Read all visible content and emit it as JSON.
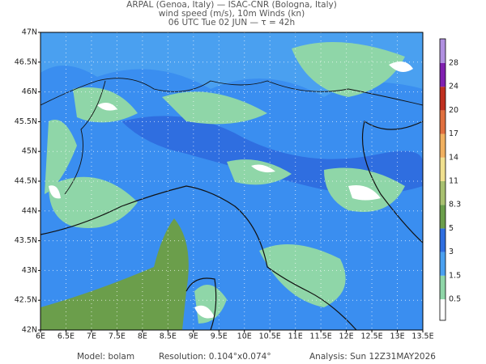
{
  "header": {
    "line1": "ARPAL (Genoa, Italy)  —  ISAC-CNR (Bologna, Italy)",
    "line2": "wind speed (m/s), 10m Winds (kn)",
    "line3": "06 UTC Tue 02 JUN  —  τ = 42h"
  },
  "map": {
    "lat_labels": [
      "42N",
      "42.5N",
      "43N",
      "43.5N",
      "44N",
      "44.5N",
      "45N",
      "45.5N",
      "46N",
      "46.5N",
      "47N"
    ],
    "lon_labels": [
      "6E",
      "6.5E",
      "7E",
      "7.5E",
      "8E",
      "8.5E",
      "9E",
      "9.5E",
      "10E",
      "10.5E",
      "11E",
      "11.5E",
      "12E",
      "12.5E",
      "13E",
      "13.5E"
    ]
  },
  "colorbar": {
    "levels": [
      0.5,
      1.5,
      3,
      5,
      8.3,
      11,
      14,
      17,
      20,
      24,
      28
    ]
  },
  "footer": {
    "model": "Model: bolam",
    "resolution": "Resolution: 0.104°x0.074°",
    "analysis": "Analysis: Sun 12Z31MAY2026"
  }
}
